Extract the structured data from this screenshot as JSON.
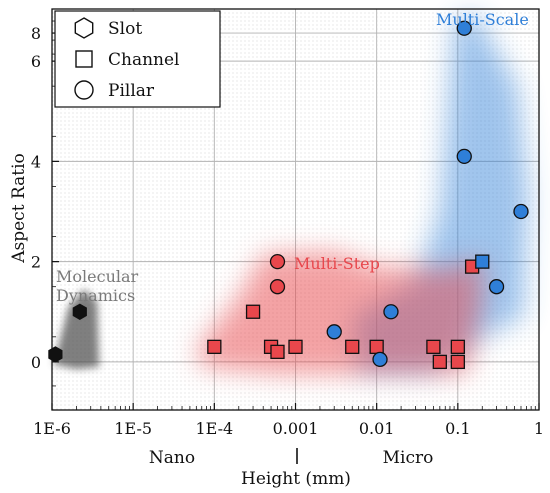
{
  "chart_data": {
    "type": "scatter",
    "xlabel": "Height (mm)",
    "ylabel": "Aspect Ratio",
    "x_scale": "log",
    "xlim": [
      1e-06,
      1
    ],
    "y_scale": "piecewise-linear",
    "y_breaks": [
      {
        "value": -1,
        "pos": 0
      },
      {
        "value": 0,
        "pos": 0.12
      },
      {
        "value": 2,
        "pos": 0.37
      },
      {
        "value": 4,
        "pos": 0.62
      },
      {
        "value": 6,
        "pos": 0.87
      },
      {
        "value": 8,
        "pos": 0.94
      },
      {
        "value": 9,
        "pos": 1.0
      }
    ],
    "x_ticks": [
      {
        "value": 1e-06,
        "label": "1E-6"
      },
      {
        "value": 1e-05,
        "label": "1E-5"
      },
      {
        "value": 0.0001,
        "label": "1E-4"
      },
      {
        "value": 0.001,
        "label": "0.001"
      },
      {
        "value": 0.01,
        "label": "0.01"
      },
      {
        "value": 0.1,
        "label": "0.1"
      },
      {
        "value": 1,
        "label": "1"
      }
    ],
    "y_ticks": [
      {
        "value": 0,
        "label": "0"
      },
      {
        "value": 2,
        "label": "2"
      },
      {
        "value": 4,
        "label": "4"
      },
      {
        "value": 6,
        "label": "6"
      },
      {
        "value": 8,
        "label": "8"
      }
    ],
    "grid": true,
    "legend_position": "top-left",
    "legend": [
      {
        "shape": "hexagon",
        "label": "Slot"
      },
      {
        "shape": "square",
        "label": "Channel"
      },
      {
        "shape": "circle",
        "label": "Pillar"
      }
    ],
    "bottom_labels": {
      "left": "Nano",
      "right": "Micro"
    },
    "regions": [
      {
        "label": "Molecular\nDynamics",
        "color": "#555555"
      },
      {
        "label": "Multi-Step",
        "color": "#e8474c"
      },
      {
        "label": "Multi-Scale",
        "color": "#2f7fd8"
      }
    ],
    "series": [
      {
        "group": "Molecular Dynamics",
        "color": "#111111",
        "points": [
          {
            "x": 1.1e-06,
            "y": 0.15,
            "shape": "hexagon"
          },
          {
            "x": 2.2e-06,
            "y": 1.0,
            "shape": "hexagon"
          }
        ]
      },
      {
        "group": "Multi-Step",
        "color": "#e8474c",
        "points": [
          {
            "x": 0.0001,
            "y": 0.3,
            "shape": "square"
          },
          {
            "x": 0.0003,
            "y": 1.0,
            "shape": "square"
          },
          {
            "x": 0.0005,
            "y": 0.3,
            "shape": "square"
          },
          {
            "x": 0.0006,
            "y": 0.2,
            "shape": "square"
          },
          {
            "x": 0.001,
            "y": 0.3,
            "shape": "square"
          },
          {
            "x": 0.005,
            "y": 0.3,
            "shape": "square"
          },
          {
            "x": 0.01,
            "y": 0.3,
            "shape": "square"
          },
          {
            "x": 0.05,
            "y": 0.3,
            "shape": "square"
          },
          {
            "x": 0.06,
            "y": 0.0,
            "shape": "square"
          },
          {
            "x": 0.1,
            "y": 0.3,
            "shape": "square"
          },
          {
            "x": 0.1,
            "y": 0.0,
            "shape": "square"
          },
          {
            "x": 0.15,
            "y": 1.9,
            "shape": "square"
          },
          {
            "x": 0.0006,
            "y": 2.0,
            "shape": "circle"
          },
          {
            "x": 0.0006,
            "y": 1.5,
            "shape": "circle"
          }
        ]
      },
      {
        "group": "Multi-Scale",
        "color": "#2f7fd8",
        "points": [
          {
            "x": 0.003,
            "y": 0.6,
            "shape": "circle"
          },
          {
            "x": 0.011,
            "y": 0.05,
            "shape": "circle"
          },
          {
            "x": 0.015,
            "y": 1.0,
            "shape": "circle"
          },
          {
            "x": 0.12,
            "y": 8.2,
            "shape": "circle"
          },
          {
            "x": 0.12,
            "y": 4.1,
            "shape": "circle"
          },
          {
            "x": 0.3,
            "y": 1.5,
            "shape": "circle"
          },
          {
            "x": 0.6,
            "y": 3.0,
            "shape": "circle"
          },
          {
            "x": 0.2,
            "y": 2.0,
            "shape": "square"
          }
        ]
      }
    ]
  }
}
